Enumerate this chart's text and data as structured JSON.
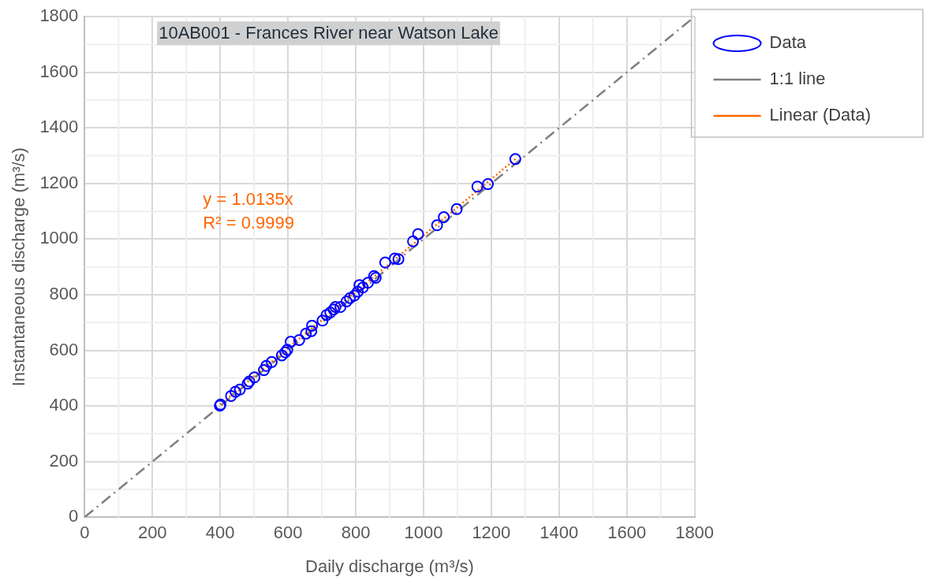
{
  "chart_data": {
    "type": "scatter",
    "title": "10AB001 - Frances River near Watson Lake",
    "xlabel": "Daily discharge (m³/s)",
    "ylabel": "Instantaneous discharge (m³/s)",
    "xlim": [
      0,
      1800
    ],
    "xticks": [
      0,
      200,
      400,
      600,
      800,
      1000,
      1200,
      1400,
      1600,
      1800
    ],
    "ylim": [
      0,
      1800
    ],
    "yticks": [
      0,
      200,
      400,
      600,
      800,
      1000,
      1200,
      1400,
      1600,
      1800
    ],
    "grid": true,
    "legend": "right",
    "marker": "circle",
    "annotations": [
      "y = 1.0135x",
      "R² = 0.9999"
    ],
    "series": [
      {
        "name": "Data",
        "color": "#0000ff",
        "x": [
          399,
          401,
          432,
          445,
          458,
          481,
          486,
          501,
          529,
          536,
          552,
          582,
          592,
          598,
          608,
          633,
          653,
          669,
          671,
          702,
          714,
          725,
          735,
          740,
          755,
          773,
          783,
          796,
          806,
          811,
          821,
          836,
          854,
          859,
          887,
          915,
          926,
          969,
          984,
          1040,
          1060,
          1098,
          1159,
          1190,
          1271
        ],
        "values": [
          401,
          405,
          436,
          451,
          459,
          480,
          488,
          503,
          529,
          544,
          558,
          582,
          593,
          602,
          631,
          637,
          660,
          669,
          689,
          707,
          727,
          736,
          747,
          756,
          756,
          776,
          788,
          797,
          811,
          835,
          826,
          843,
          867,
          861,
          916,
          930,
          928,
          992,
          1018,
          1050,
          1079,
          1108,
          1189,
          1198,
          1288
        ]
      },
      {
        "name": "1:1 line",
        "type": "line",
        "color": "#7f7f7f",
        "line_style": "dashed",
        "marker": "none",
        "x": [
          0,
          1800
        ],
        "values": [
          0,
          1800
        ]
      },
      {
        "name": "Linear (Data)",
        "type": "line",
        "color": "#ff6600",
        "line_style": "dotted",
        "marker": "none",
        "x": [
          400,
          1271
        ],
        "values": [
          405,
          1288
        ]
      }
    ]
  }
}
